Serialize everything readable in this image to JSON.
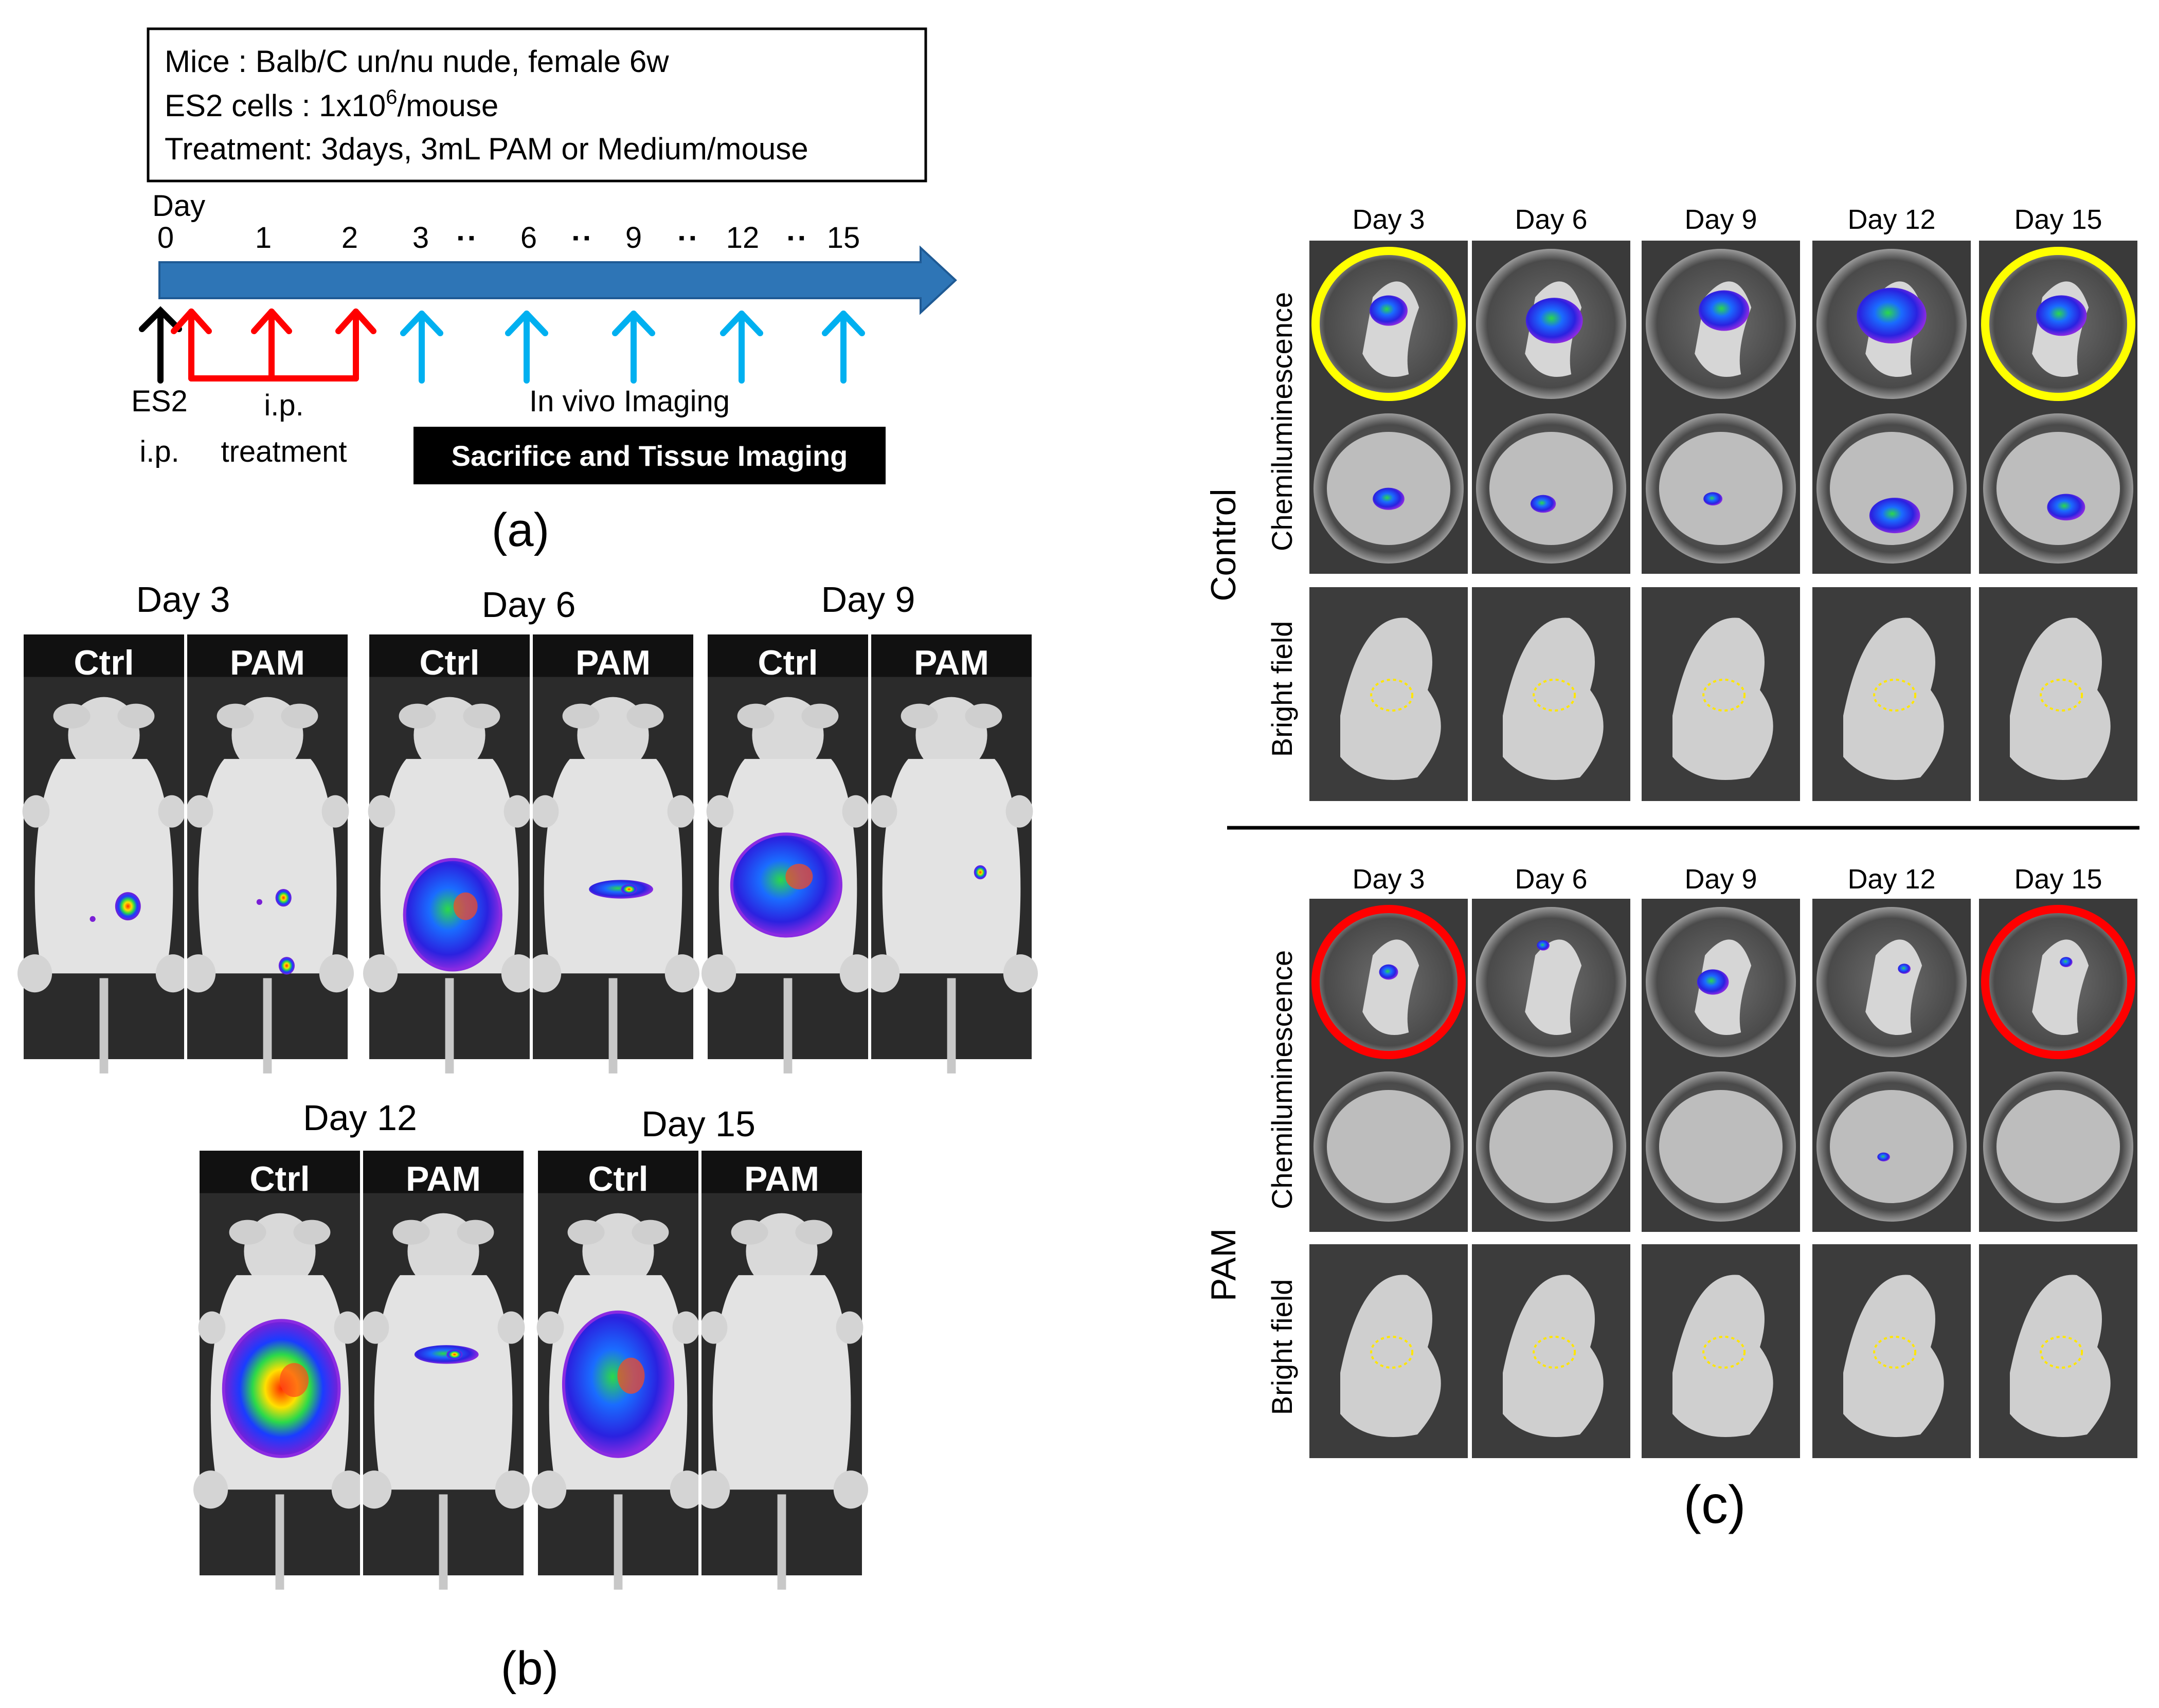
{
  "panel_a": {
    "info_lines": [
      "Mice : Balb/C un/nu nude, female 6w",
      "ES2 cells : 1x10",
      "Treatment: 3days, 3mL PAM or Medium/mouse"
    ],
    "info_sup": "6",
    "info_suffix": "/mouse",
    "day_title": "Day",
    "day_numbers": [
      "0",
      "1",
      "2",
      "3",
      "6",
      "9",
      "12",
      "15"
    ],
    "dots": "▪ ▪",
    "es2_lines": [
      "ES2",
      "i.p."
    ],
    "ip_lines": [
      "i.p.",
      "treatment"
    ],
    "in_vivo": "In vivo Imaging",
    "sacrifice": "Sacrifice and Tissue Imaging",
    "caption": "(a)",
    "colors": {
      "timeline": "#2e75b6",
      "es2_arrow": "#000000",
      "treat_arrow": "#ff0000",
      "imaging_arrow": "#00b0f0"
    }
  },
  "panel_b": {
    "groups": [
      {
        "day": "Day 3",
        "ctrl": "Ctrl",
        "pam": "PAM"
      },
      {
        "day": "Day 6",
        "ctrl": "Ctrl",
        "pam": "PAM"
      },
      {
        "day": "Day 9",
        "ctrl": "Ctrl",
        "pam": "PAM"
      },
      {
        "day": "Day 12",
        "ctrl": "Ctrl",
        "pam": "PAM"
      },
      {
        "day": "Day 15",
        "ctrl": "Ctrl",
        "pam": "PAM"
      }
    ],
    "caption": "(b)"
  },
  "panel_c": {
    "days": [
      "Day 3",
      "Day 6",
      "Day 9",
      "Day 12",
      "Day 15"
    ],
    "groups": [
      "Control",
      "PAM"
    ],
    "rows": [
      "Chemiluminescence",
      "Bright field"
    ],
    "caption": "(c)",
    "highlight_colors": {
      "control": "#ffff00",
      "pam": "#ff0000"
    }
  }
}
